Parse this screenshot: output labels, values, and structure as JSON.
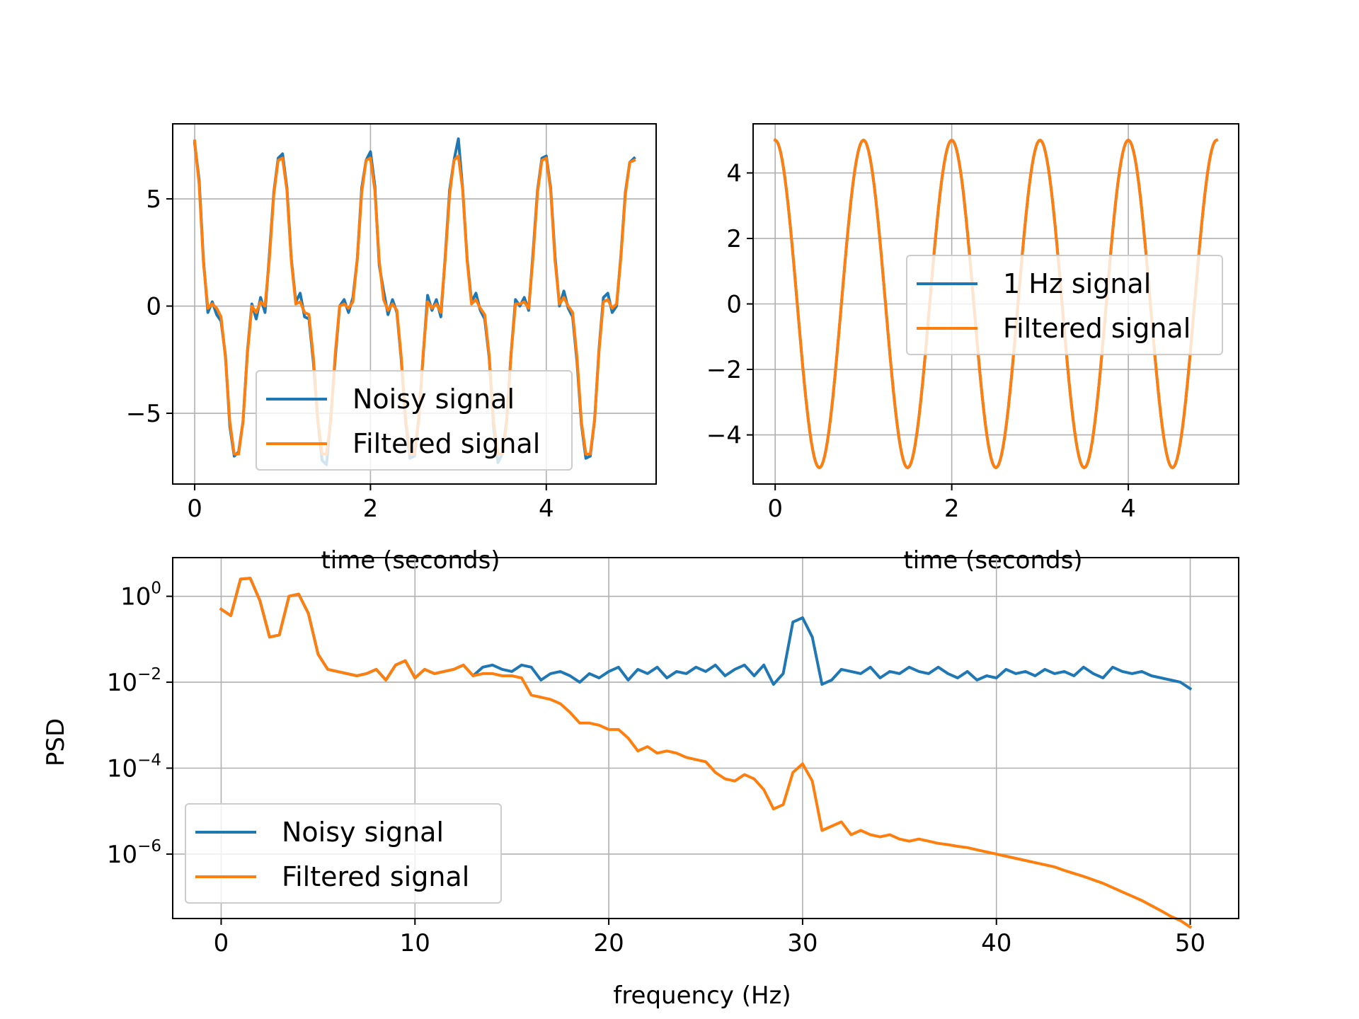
{
  "colors": {
    "noisy": "#1f77b4",
    "filtered": "#ff7f0e",
    "grid": "#b0b0b0"
  },
  "chart_data": [
    {
      "type": "line",
      "panel": "top-left",
      "title": "",
      "xlabel": "time (seconds)",
      "ylabel": "",
      "xlim": [
        -0.25,
        5.25
      ],
      "ylim": [
        -8.3,
        8.5
      ],
      "xticks": [
        "0",
        "2",
        "4"
      ],
      "yticks": [
        "−5",
        "0",
        "5"
      ],
      "grid": true,
      "legend": {
        "placement": "lower-center",
        "entries": [
          "Noisy signal",
          "Filtered signal"
        ]
      },
      "series": [
        {
          "name": "Noisy signal",
          "color": "#1f77b4",
          "x": [
            0.0,
            0.05,
            0.1,
            0.15,
            0.2,
            0.25,
            0.3,
            0.35,
            0.4,
            0.45,
            0.5,
            0.55,
            0.6,
            0.65,
            0.7,
            0.75,
            0.8,
            0.85,
            0.9,
            0.95,
            1.0,
            1.05,
            1.1,
            1.15,
            1.2,
            1.25,
            1.3,
            1.35,
            1.4,
            1.45,
            1.5,
            1.55,
            1.6,
            1.65,
            1.7,
            1.75,
            1.8,
            1.85,
            1.9,
            1.95,
            2.0,
            2.05,
            2.1,
            2.15,
            2.2,
            2.25,
            2.3,
            2.35,
            2.4,
            2.45,
            2.5,
            2.55,
            2.6,
            2.65,
            2.7,
            2.75,
            2.8,
            2.85,
            2.9,
            2.95,
            3.0,
            3.05,
            3.1,
            3.15,
            3.2,
            3.25,
            3.3,
            3.35,
            3.4,
            3.45,
            3.5,
            3.55,
            3.6,
            3.65,
            3.7,
            3.75,
            3.8,
            3.85,
            3.9,
            3.95,
            4.0,
            4.05,
            4.1,
            4.15,
            4.2,
            4.25,
            4.3,
            4.35,
            4.4,
            4.45,
            4.5,
            4.55,
            4.6,
            4.65,
            4.7,
            4.75,
            4.8,
            4.85,
            4.9,
            4.95,
            5.0
          ],
          "y": [
            7.6,
            5.9,
            2.1,
            -0.3,
            0.2,
            -0.4,
            -0.7,
            -2.3,
            -5.6,
            -7.0,
            -6.8,
            -5.4,
            -2.1,
            0.1,
            -0.6,
            0.4,
            -0.3,
            2.4,
            5.3,
            6.9,
            7.1,
            5.5,
            2.2,
            0.2,
            0.6,
            -0.5,
            -0.6,
            -2.6,
            -5.3,
            -7.2,
            -7.4,
            -5.1,
            -2.4,
            0.0,
            0.3,
            -0.3,
            0.4,
            2.2,
            5.5,
            6.8,
            7.2,
            5.6,
            1.9,
            0.7,
            -0.4,
            0.3,
            -0.3,
            -2.5,
            -5.4,
            -7.1,
            -7.0,
            -5.2,
            -2.3,
            0.5,
            -0.2,
            0.3,
            -0.5,
            2.3,
            5.4,
            6.8,
            7.8,
            5.4,
            2.2,
            0.2,
            0.6,
            -0.2,
            -0.6,
            -2.4,
            -5.6,
            -7.3,
            -6.9,
            -5.3,
            -2.2,
            0.3,
            0.0,
            0.4,
            -0.2,
            2.5,
            5.4,
            6.9,
            7.0,
            5.5,
            2.3,
            0.0,
            0.7,
            -0.1,
            -0.5,
            -2.6,
            -5.5,
            -7.1,
            -7.0,
            -5.3,
            -2.0,
            0.4,
            0.6,
            -0.3,
            0.0,
            2.4,
            5.3,
            6.7,
            6.9
          ]
        },
        {
          "name": "Filtered signal",
          "color": "#ff7f0e",
          "x": [
            0.0,
            0.05,
            0.1,
            0.15,
            0.2,
            0.25,
            0.3,
            0.35,
            0.4,
            0.45,
            0.5,
            0.55,
            0.6,
            0.65,
            0.7,
            0.75,
            0.8,
            0.85,
            0.9,
            0.95,
            1.0,
            1.05,
            1.1,
            1.15,
            1.2,
            1.25,
            1.3,
            1.35,
            1.4,
            1.45,
            1.5,
            1.55,
            1.6,
            1.65,
            1.7,
            1.75,
            1.8,
            1.85,
            1.9,
            1.95,
            2.0,
            2.05,
            2.1,
            2.15,
            2.2,
            2.25,
            2.3,
            2.35,
            2.4,
            2.45,
            2.5,
            2.55,
            2.6,
            2.65,
            2.7,
            2.75,
            2.8,
            2.85,
            2.9,
            2.95,
            3.0,
            3.05,
            3.1,
            3.15,
            3.2,
            3.25,
            3.3,
            3.35,
            3.4,
            3.45,
            3.5,
            3.55,
            3.6,
            3.65,
            3.7,
            3.75,
            3.8,
            3.85,
            3.9,
            3.95,
            4.0,
            4.05,
            4.1,
            4.15,
            4.2,
            4.25,
            4.3,
            4.35,
            4.4,
            4.45,
            4.5,
            4.55,
            4.6,
            4.65,
            4.7,
            4.75,
            4.8,
            4.85,
            4.9,
            4.95,
            5.0
          ],
          "y": [
            7.7,
            5.7,
            2.0,
            -0.1,
            0.1,
            -0.1,
            -0.5,
            -2.4,
            -5.4,
            -6.9,
            -6.9,
            -5.4,
            -2.2,
            0.0,
            -0.3,
            0.2,
            0.0,
            2.2,
            5.2,
            6.8,
            6.9,
            5.4,
            2.1,
            0.1,
            0.2,
            -0.3,
            -0.4,
            -2.4,
            -5.3,
            -6.9,
            -6.9,
            -5.3,
            -2.2,
            0.0,
            0.1,
            -0.1,
            0.2,
            2.2,
            5.3,
            6.8,
            6.9,
            5.4,
            2.1,
            0.3,
            -0.2,
            0.1,
            -0.2,
            -2.4,
            -5.3,
            -6.9,
            -6.9,
            -5.3,
            -2.2,
            0.2,
            -0.1,
            0.1,
            -0.3,
            2.2,
            5.2,
            6.8,
            7.0,
            5.4,
            2.1,
            0.1,
            0.3,
            -0.1,
            -0.4,
            -2.3,
            -5.4,
            -6.9,
            -6.9,
            -5.4,
            -2.2,
            0.1,
            0.1,
            0.2,
            -0.1,
            2.3,
            5.3,
            6.8,
            6.9,
            5.4,
            2.1,
            0.1,
            0.4,
            0.0,
            -0.3,
            -2.4,
            -5.4,
            -6.9,
            -6.9,
            -5.3,
            -2.1,
            0.2,
            0.3,
            -0.1,
            0.1,
            2.3,
            5.2,
            6.7,
            6.8
          ]
        }
      ]
    },
    {
      "type": "line",
      "panel": "top-right",
      "title": "",
      "xlabel": "time (seconds)",
      "ylabel": "",
      "xlim": [
        -0.25,
        5.25
      ],
      "ylim": [
        -5.5,
        5.5
      ],
      "xticks": [
        "0",
        "2",
        "4"
      ],
      "yticks": [
        "−4",
        "−2",
        "0",
        "2",
        "4"
      ],
      "grid": true,
      "legend": {
        "placement": "center-right",
        "entries": [
          "1 Hz signal",
          "Filtered signal"
        ]
      },
      "series": [
        {
          "name": "1 Hz signal",
          "color": "#1f77b4",
          "function": "5*cos(2*pi*1*t)",
          "t_range": [
            0,
            5
          ]
        },
        {
          "name": "Filtered signal",
          "color": "#ff7f0e",
          "function": "5*cos(2*pi*1*t)",
          "t_range": [
            0,
            5
          ]
        }
      ]
    },
    {
      "type": "line",
      "panel": "bottom",
      "title": "",
      "xlabel": "frequency (Hz)",
      "ylabel": "PSD",
      "yscale": "log",
      "xlim": [
        -2.5,
        52.5
      ],
      "ylim_log10": [
        -7.5,
        0.9
      ],
      "xticks": [
        "0",
        "10",
        "20",
        "30",
        "40",
        "50"
      ],
      "yticks": [
        {
          "base": "10",
          "exp": "0"
        },
        {
          "base": "10",
          "exp": "−2"
        },
        {
          "base": "10",
          "exp": "−4"
        },
        {
          "base": "10",
          "exp": "−6"
        }
      ],
      "grid": true,
      "legend": {
        "placement": "lower-left",
        "entries": [
          "Noisy signal",
          "Filtered signal"
        ]
      },
      "series": [
        {
          "name": "Noisy signal",
          "color": "#1f77b4",
          "x": [
            0.0,
            0.5,
            1.0,
            1.5,
            2.0,
            2.5,
            3.0,
            3.5,
            4.0,
            4.5,
            5.0,
            5.5,
            6.0,
            6.5,
            7.0,
            7.5,
            8.0,
            8.5,
            9.0,
            9.5,
            10.0,
            10.5,
            11.0,
            11.5,
            12.0,
            12.5,
            13.0,
            13.5,
            14.0,
            14.5,
            15.0,
            15.5,
            16.0,
            16.5,
            17.0,
            17.5,
            18.0,
            18.5,
            19.0,
            19.5,
            20.0,
            20.5,
            21.0,
            21.5,
            22.0,
            22.5,
            23.0,
            23.5,
            24.0,
            24.5,
            25.0,
            25.5,
            26.0,
            26.5,
            27.0,
            27.5,
            28.0,
            28.5,
            29.0,
            29.5,
            30.0,
            30.5,
            31.0,
            31.5,
            32.0,
            32.5,
            33.0,
            33.5,
            34.0,
            34.5,
            35.0,
            35.5,
            36.0,
            36.5,
            37.0,
            37.5,
            38.0,
            38.5,
            39.0,
            39.5,
            40.0,
            40.5,
            41.0,
            41.5,
            42.0,
            42.5,
            43.0,
            43.5,
            44.0,
            44.5,
            45.0,
            45.5,
            46.0,
            46.5,
            47.0,
            47.5,
            48.0,
            48.5,
            49.0,
            49.5,
            50.0
          ],
          "log10": [
            -0.3,
            -0.45,
            0.4,
            0.42,
            -0.1,
            -0.95,
            -0.9,
            0.0,
            0.05,
            -0.4,
            -1.35,
            -1.7,
            -1.75,
            -1.8,
            -1.85,
            -1.8,
            -1.7,
            -1.95,
            -1.6,
            -1.5,
            -1.9,
            -1.7,
            -1.8,
            -1.75,
            -1.7,
            -1.6,
            -1.85,
            -1.65,
            -1.6,
            -1.7,
            -1.75,
            -1.6,
            -1.65,
            -1.95,
            -1.8,
            -1.75,
            -1.85,
            -2.0,
            -1.8,
            -1.9,
            -1.75,
            -1.65,
            -1.95,
            -1.7,
            -1.8,
            -1.65,
            -1.9,
            -1.75,
            -1.8,
            -1.65,
            -1.75,
            -1.6,
            -1.85,
            -1.7,
            -1.6,
            -1.85,
            -1.6,
            -2.05,
            -1.8,
            -0.6,
            -0.5,
            -0.95,
            -2.05,
            -1.95,
            -1.7,
            -1.75,
            -1.8,
            -1.65,
            -1.9,
            -1.75,
            -1.8,
            -1.65,
            -1.75,
            -1.8,
            -1.65,
            -1.8,
            -1.9,
            -1.75,
            -1.95,
            -1.85,
            -1.9,
            -1.7,
            -1.8,
            -1.75,
            -1.85,
            -1.7,
            -1.8,
            -1.75,
            -1.85,
            -1.65,
            -1.8,
            -1.9,
            -1.65,
            -1.75,
            -1.8,
            -1.75,
            -1.85,
            -1.9,
            -1.95,
            -2.0,
            -2.15
          ]
        },
        {
          "name": "Filtered signal",
          "color": "#ff7f0e",
          "x": [
            0.0,
            0.5,
            1.0,
            1.5,
            2.0,
            2.5,
            3.0,
            3.5,
            4.0,
            4.5,
            5.0,
            5.5,
            6.0,
            6.5,
            7.0,
            7.5,
            8.0,
            8.5,
            9.0,
            9.5,
            10.0,
            10.5,
            11.0,
            11.5,
            12.0,
            12.5,
            13.0,
            13.5,
            14.0,
            14.5,
            15.0,
            15.5,
            16.0,
            16.5,
            17.0,
            17.5,
            18.0,
            18.5,
            19.0,
            19.5,
            20.0,
            20.5,
            21.0,
            21.5,
            22.0,
            22.5,
            23.0,
            23.5,
            24.0,
            24.5,
            25.0,
            25.5,
            26.0,
            26.5,
            27.0,
            27.5,
            28.0,
            28.5,
            29.0,
            29.5,
            30.0,
            30.5,
            31.0,
            31.5,
            32.0,
            32.5,
            33.0,
            33.5,
            34.0,
            34.5,
            35.0,
            35.5,
            36.0,
            36.5,
            37.0,
            37.5,
            38.0,
            38.5,
            39.0,
            39.5,
            40.0,
            40.5,
            41.0,
            41.5,
            42.0,
            42.5,
            43.0,
            43.5,
            44.0,
            44.5,
            45.0,
            45.5,
            46.0,
            46.5,
            47.0,
            47.5,
            48.0,
            48.5,
            49.0,
            49.5,
            50.0
          ],
          "log10": [
            -0.3,
            -0.45,
            0.4,
            0.42,
            -0.1,
            -0.95,
            -0.9,
            0.0,
            0.05,
            -0.4,
            -1.35,
            -1.7,
            -1.75,
            -1.8,
            -1.85,
            -1.8,
            -1.7,
            -1.95,
            -1.6,
            -1.5,
            -1.9,
            -1.7,
            -1.8,
            -1.75,
            -1.7,
            -1.6,
            -1.85,
            -1.8,
            -1.8,
            -1.85,
            -1.85,
            -1.9,
            -2.3,
            -2.35,
            -2.4,
            -2.5,
            -2.7,
            -2.95,
            -2.95,
            -3.0,
            -3.1,
            -3.1,
            -3.3,
            -3.6,
            -3.5,
            -3.65,
            -3.6,
            -3.65,
            -3.75,
            -3.8,
            -3.85,
            -4.1,
            -4.25,
            -4.3,
            -4.15,
            -4.25,
            -4.5,
            -4.95,
            -4.85,
            -4.1,
            -3.9,
            -4.3,
            -5.45,
            -5.35,
            -5.25,
            -5.55,
            -5.45,
            -5.55,
            -5.6,
            -5.55,
            -5.65,
            -5.7,
            -5.65,
            -5.7,
            -5.75,
            -5.78,
            -5.82,
            -5.85,
            -5.9,
            -5.95,
            -6.0,
            -6.05,
            -6.1,
            -6.15,
            -6.2,
            -6.25,
            -6.3,
            -6.38,
            -6.45,
            -6.52,
            -6.6,
            -6.68,
            -6.78,
            -6.88,
            -6.98,
            -7.08,
            -7.2,
            -7.32,
            -7.45,
            -7.55,
            -7.7
          ]
        }
      ]
    }
  ]
}
